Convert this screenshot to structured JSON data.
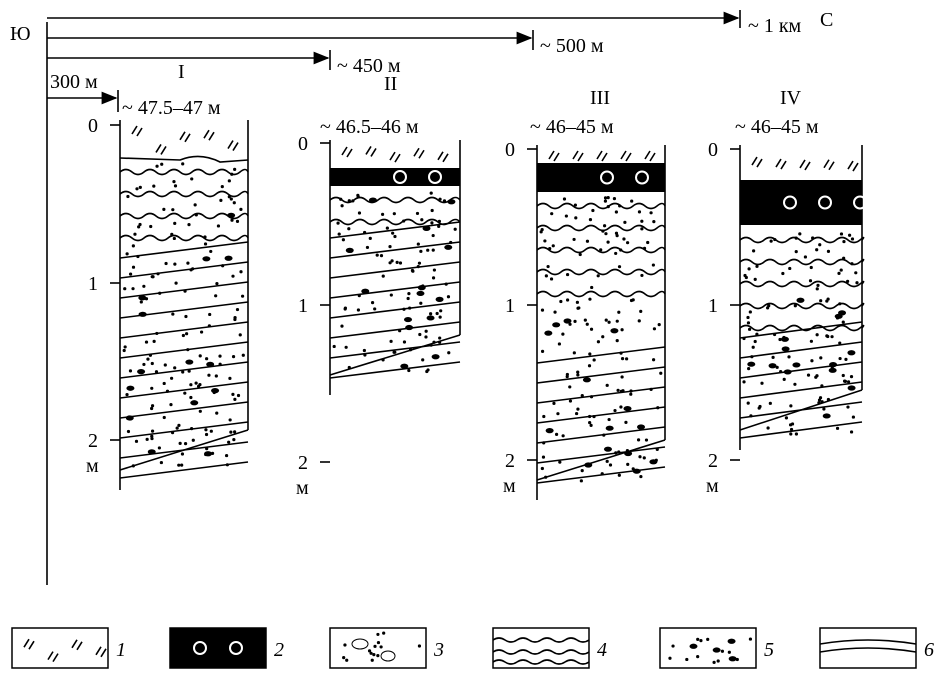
{
  "axis": {
    "south": "Ю",
    "north": "С"
  },
  "distances": [
    {
      "label": "300 м"
    },
    {
      "label": "~ 450 м"
    },
    {
      "label": "~ 500 м"
    },
    {
      "label": "~ 1 км"
    }
  ],
  "columns": [
    {
      "name": "I",
      "elevation": "~ 47.5–47 м",
      "depth_ticks": [
        "0",
        "1",
        "2"
      ],
      "depth_unit": "м"
    },
    {
      "name": "II",
      "elevation": "~ 46.5–46 м",
      "depth_ticks": [
        "0",
        "1",
        "2"
      ],
      "depth_unit": "м"
    },
    {
      "name": "III",
      "elevation": "~ 46–45 м",
      "depth_ticks": [
        "0",
        "1",
        "2"
      ],
      "depth_unit": "м"
    },
    {
      "name": "IV",
      "elevation": "~ 46–45 м",
      "depth_ticks": [
        "0",
        "1",
        "2"
      ],
      "depth_unit": "м"
    }
  ],
  "legend": [
    {
      "label": "1"
    },
    {
      "label": "2"
    },
    {
      "label": "3"
    },
    {
      "label": "4"
    },
    {
      "label": "5"
    },
    {
      "label": "6"
    }
  ]
}
